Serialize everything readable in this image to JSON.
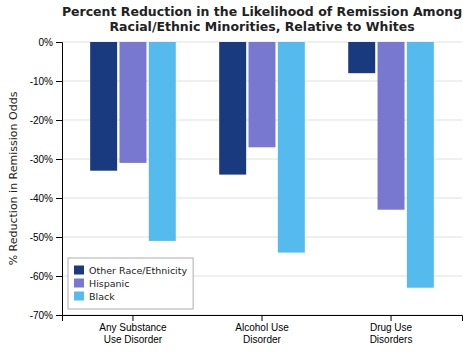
{
  "chart_data": {
    "type": "bar",
    "title": "Percent Reduction in the Likelihood of Remission Among\nRacial/Ethnic Minorities, Relative to Whites",
    "ylabel": "% Reduction in Remission Odds",
    "categories": [
      "Any Substance\nUse Disorder",
      "Alcohol Use\nDisorder",
      "Drug Use\nDisorders"
    ],
    "series": [
      {
        "name": "Other Race/Ethnicity",
        "color": "#1a3a80",
        "values": [
          -33,
          -34,
          -8
        ]
      },
      {
        "name": "Hispanic",
        "color": "#7878d0",
        "values": [
          -31,
          -27,
          -43
        ]
      },
      {
        "name": "Black",
        "color": "#55bbee",
        "values": [
          -51,
          -54,
          -63
        ]
      }
    ],
    "ylim": [
      -70,
      0
    ],
    "yticks": [
      {
        "value": 0,
        "label": "0%"
      },
      {
        "value": -10,
        "label": "-10%"
      },
      {
        "value": -20,
        "label": "-20%"
      },
      {
        "value": -30,
        "label": "-30%"
      },
      {
        "value": -40,
        "label": "-40%"
      },
      {
        "value": -50,
        "label": "-50%"
      },
      {
        "value": -60,
        "label": "-60%"
      },
      {
        "value": -70,
        "label": "-70%"
      }
    ],
    "grid": true,
    "legend": "lower left"
  }
}
